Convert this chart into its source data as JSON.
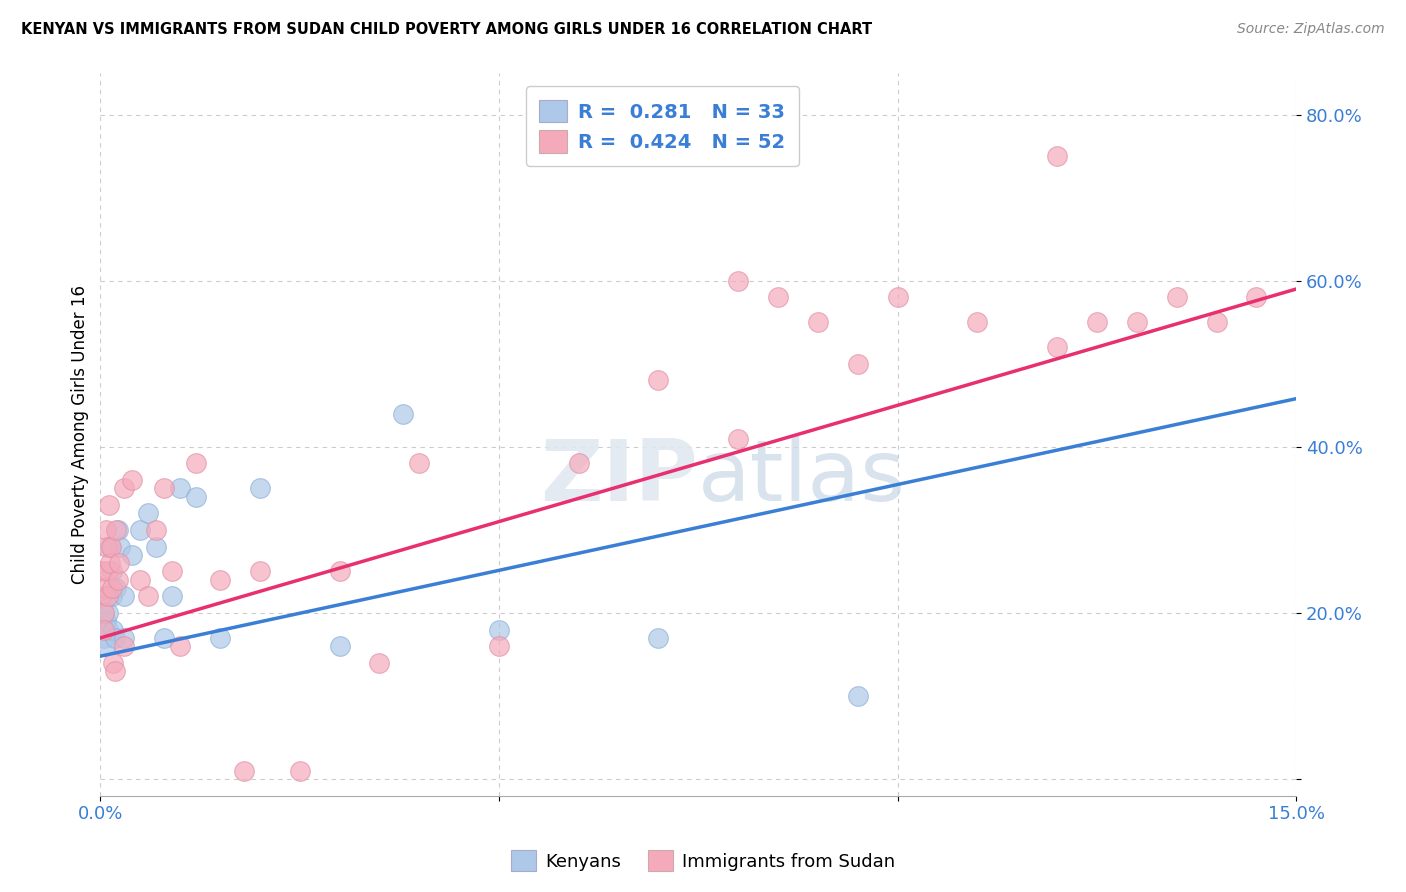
{
  "title": "KENYAN VS IMMIGRANTS FROM SUDAN CHILD POVERTY AMONG GIRLS UNDER 16 CORRELATION CHART",
  "source": "Source: ZipAtlas.com",
  "ylabel": "Child Poverty Among Girls Under 16",
  "xlim": [
    0.0,
    0.15
  ],
  "ylim": [
    -0.02,
    0.85
  ],
  "kenyan_R": 0.281,
  "kenyan_N": 33,
  "sudan_R": 0.424,
  "sudan_N": 52,
  "kenyan_color": "#adc8e8",
  "sudan_color": "#f5aabb",
  "kenyan_line_color": "#3a7fd5",
  "sudan_line_color": "#e83070",
  "watermark": "ZIPatlas",
  "kenyan_x": [
    0.0002,
    0.0004,
    0.0005,
    0.0006,
    0.0007,
    0.0008,
    0.0009,
    0.001,
    0.0012,
    0.0014,
    0.0015,
    0.0016,
    0.0018,
    0.002,
    0.0022,
    0.0025,
    0.003,
    0.003,
    0.004,
    0.005,
    0.006,
    0.007,
    0.008,
    0.009,
    0.01,
    0.012,
    0.015,
    0.02,
    0.03,
    0.038,
    0.05,
    0.07,
    0.095
  ],
  "kenyan_y": [
    0.18,
    0.2,
    0.17,
    0.16,
    0.19,
    0.22,
    0.18,
    0.2,
    0.28,
    0.25,
    0.22,
    0.18,
    0.17,
    0.23,
    0.3,
    0.28,
    0.22,
    0.17,
    0.27,
    0.3,
    0.32,
    0.28,
    0.17,
    0.22,
    0.35,
    0.34,
    0.17,
    0.35,
    0.16,
    0.44,
    0.18,
    0.17,
    0.1
  ],
  "sudan_x": [
    0.0001,
    0.0003,
    0.0004,
    0.0005,
    0.0006,
    0.0007,
    0.0008,
    0.0009,
    0.001,
    0.0011,
    0.0012,
    0.0013,
    0.0015,
    0.0016,
    0.0018,
    0.002,
    0.0022,
    0.0024,
    0.003,
    0.003,
    0.004,
    0.005,
    0.006,
    0.007,
    0.008,
    0.009,
    0.01,
    0.012,
    0.015,
    0.018,
    0.02,
    0.025,
    0.03,
    0.035,
    0.04,
    0.05,
    0.06,
    0.07,
    0.08,
    0.08,
    0.085,
    0.09,
    0.095,
    0.1,
    0.11,
    0.12,
    0.12,
    0.125,
    0.13,
    0.135,
    0.14,
    0.145
  ],
  "sudan_y": [
    0.22,
    0.25,
    0.2,
    0.18,
    0.23,
    0.3,
    0.28,
    0.25,
    0.22,
    0.33,
    0.26,
    0.28,
    0.23,
    0.14,
    0.13,
    0.3,
    0.24,
    0.26,
    0.16,
    0.35,
    0.36,
    0.24,
    0.22,
    0.3,
    0.35,
    0.25,
    0.16,
    0.38,
    0.24,
    0.01,
    0.25,
    0.01,
    0.25,
    0.14,
    0.38,
    0.16,
    0.38,
    0.48,
    0.41,
    0.6,
    0.58,
    0.55,
    0.5,
    0.58,
    0.55,
    0.52,
    0.75,
    0.55,
    0.55,
    0.58,
    0.55,
    0.58
  ]
}
